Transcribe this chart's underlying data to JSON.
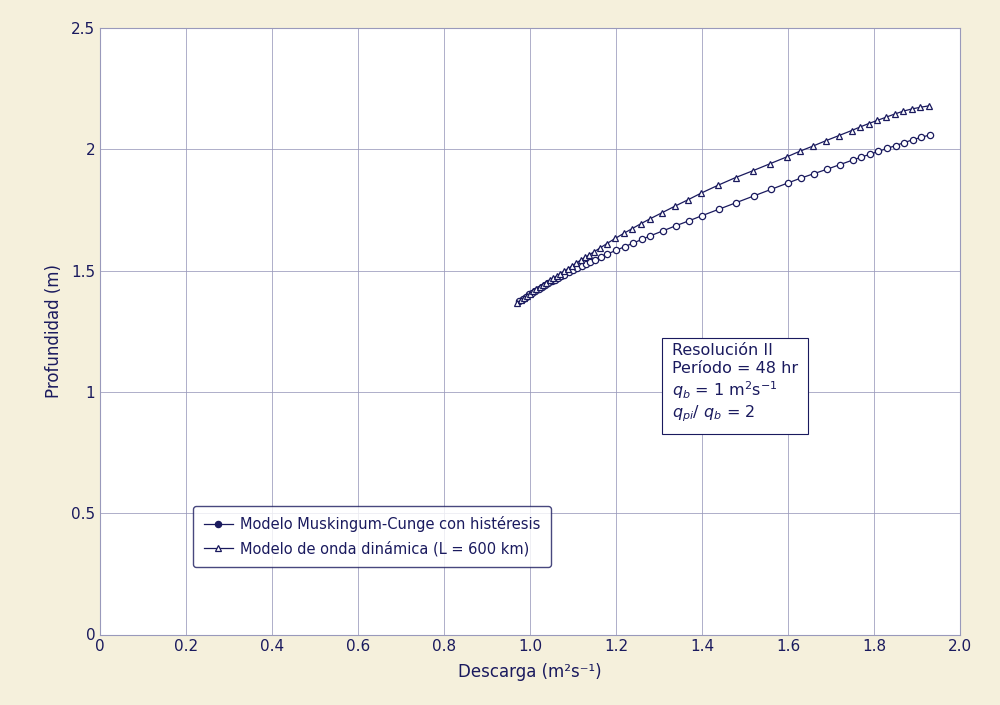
{
  "background_color": "#f5f0dc",
  "plot_bg_color": "#ffffff",
  "line_color": "#1a1a5e",
  "grid_color": "#9999bb",
  "xlim": [
    0,
    2.0
  ],
  "ylim": [
    0,
    2.5
  ],
  "xticks": [
    0,
    0.2,
    0.4,
    0.6,
    0.8,
    1.0,
    1.2,
    1.4,
    1.6,
    1.8,
    2.0
  ],
  "yticks": [
    0,
    0.5,
    1.0,
    1.5,
    2.0,
    2.5
  ],
  "xlabel": "Descarga (m²s⁻¹)",
  "ylabel": "Profundidad (m)",
  "legend_label1": "Modelo Muskingum-Cunge con histéresis",
  "legend_label2": "Modelo de onda dinámica (L = 600 km)",
  "ann1": "Resolución II",
  "ann2": "Período = 48 hr",
  "ann3": "$q_b$ = 1 m$^2$s$^{-1}$",
  "ann4": "$q_{pi}$/ $q_b$ = 2",
  "series1_x": [
    0.975,
    0.983,
    0.99,
    0.998,
    1.005,
    1.012,
    1.02,
    1.027,
    1.034,
    1.042,
    1.05,
    1.057,
    1.065,
    1.072,
    1.08,
    1.09,
    1.1,
    1.11,
    1.12,
    1.13,
    1.14,
    1.15,
    1.165,
    1.18,
    1.2,
    1.22,
    1.24,
    1.26,
    1.28,
    1.31,
    1.34,
    1.37,
    1.4,
    1.44,
    1.48,
    1.52,
    1.56,
    1.6,
    1.63,
    1.66,
    1.69,
    1.72,
    1.75,
    1.77,
    1.79,
    1.81,
    1.83,
    1.85,
    1.87,
    1.89,
    1.91,
    1.93
  ],
  "series1_y": [
    1.375,
    1.385,
    1.393,
    1.402,
    1.41,
    1.418,
    1.426,
    1.434,
    1.441,
    1.449,
    1.457,
    1.463,
    1.47,
    1.477,
    1.484,
    1.494,
    1.503,
    1.512,
    1.521,
    1.529,
    1.537,
    1.546,
    1.557,
    1.569,
    1.584,
    1.599,
    1.614,
    1.629,
    1.644,
    1.665,
    1.686,
    1.706,
    1.727,
    1.754,
    1.781,
    1.808,
    1.835,
    1.862,
    1.882,
    1.9,
    1.918,
    1.937,
    1.956,
    1.968,
    1.98,
    1.992,
    2.004,
    2.016,
    2.028,
    2.04,
    2.05,
    2.06
  ],
  "series2_x": [
    0.97,
    0.978,
    0.985,
    0.993,
    1.0,
    1.008,
    1.015,
    1.023,
    1.03,
    1.038,
    1.046,
    1.054,
    1.062,
    1.07,
    1.078,
    1.088,
    1.098,
    1.108,
    1.118,
    1.128,
    1.138,
    1.148,
    1.163,
    1.178,
    1.198,
    1.218,
    1.238,
    1.258,
    1.278,
    1.308,
    1.338,
    1.368,
    1.398,
    1.438,
    1.478,
    1.518,
    1.558,
    1.598,
    1.628,
    1.658,
    1.688,
    1.718,
    1.748,
    1.768,
    1.788,
    1.808,
    1.828,
    1.848,
    1.868,
    1.888,
    1.908,
    1.928
  ],
  "series2_y": [
    1.368,
    1.378,
    1.387,
    1.397,
    1.406,
    1.415,
    1.424,
    1.433,
    1.442,
    1.451,
    1.46,
    1.469,
    1.478,
    1.487,
    1.497,
    1.508,
    1.52,
    1.532,
    1.544,
    1.555,
    1.566,
    1.577,
    1.594,
    1.611,
    1.633,
    1.654,
    1.674,
    1.694,
    1.713,
    1.74,
    1.767,
    1.793,
    1.82,
    1.853,
    1.884,
    1.912,
    1.941,
    1.97,
    1.993,
    2.014,
    2.036,
    2.057,
    2.078,
    2.093,
    2.107,
    2.12,
    2.133,
    2.146,
    2.158,
    2.167,
    2.174,
    2.18
  ]
}
